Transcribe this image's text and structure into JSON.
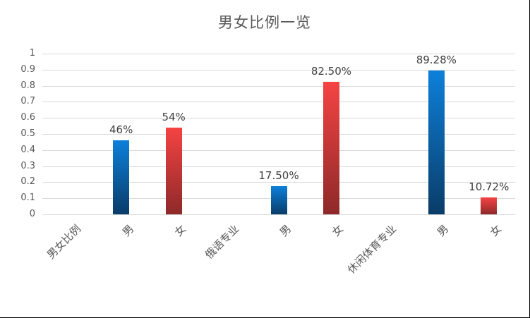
{
  "figure": {
    "title": "男女比例一览"
  },
  "chart_data": {
    "type": "bar",
    "title": "男女比例一览",
    "categories": [
      "男女比例",
      "男",
      "女",
      "俄语专业",
      "男",
      "女",
      "休闲体育专业",
      "男",
      "女"
    ],
    "values": [
      null,
      0.46,
      0.54,
      null,
      0.175,
      0.825,
      null,
      0.8928,
      0.1072
    ],
    "data_labels": [
      "",
      "46%",
      "54%",
      "",
      "17.50%",
      "82.50%",
      "",
      "89.28%",
      "10.72%"
    ],
    "bar_series": [
      null,
      "male",
      "female",
      null,
      "male",
      "female",
      null,
      "male",
      "female"
    ],
    "series": [
      {
        "name": "男",
        "color_key": "male",
        "values": [
          null,
          0.46,
          null,
          null,
          0.175,
          null,
          null,
          0.8928,
          null
        ]
      },
      {
        "name": "女",
        "color_key": "female",
        "values": [
          null,
          null,
          0.54,
          null,
          null,
          0.825,
          null,
          null,
          0.1072
        ]
      }
    ],
    "xlabel": "",
    "ylabel": "",
    "ylim": [
      0,
      1
    ],
    "y_ticks": [
      "0",
      "0.1",
      "0.2",
      "0.3",
      "0.4",
      "0.5",
      "0.6",
      "0.7",
      "0.8",
      "0.9",
      "1"
    ],
    "grid": true,
    "legend": "none",
    "colors": {
      "male_top": "#0d80da",
      "male_bottom": "#0a3c68",
      "female_top": "#f54343",
      "female_bottom": "#8e2929",
      "axis_text": "#595959",
      "data_label_text": "#404040",
      "gridline": "#d9d9d9"
    }
  }
}
